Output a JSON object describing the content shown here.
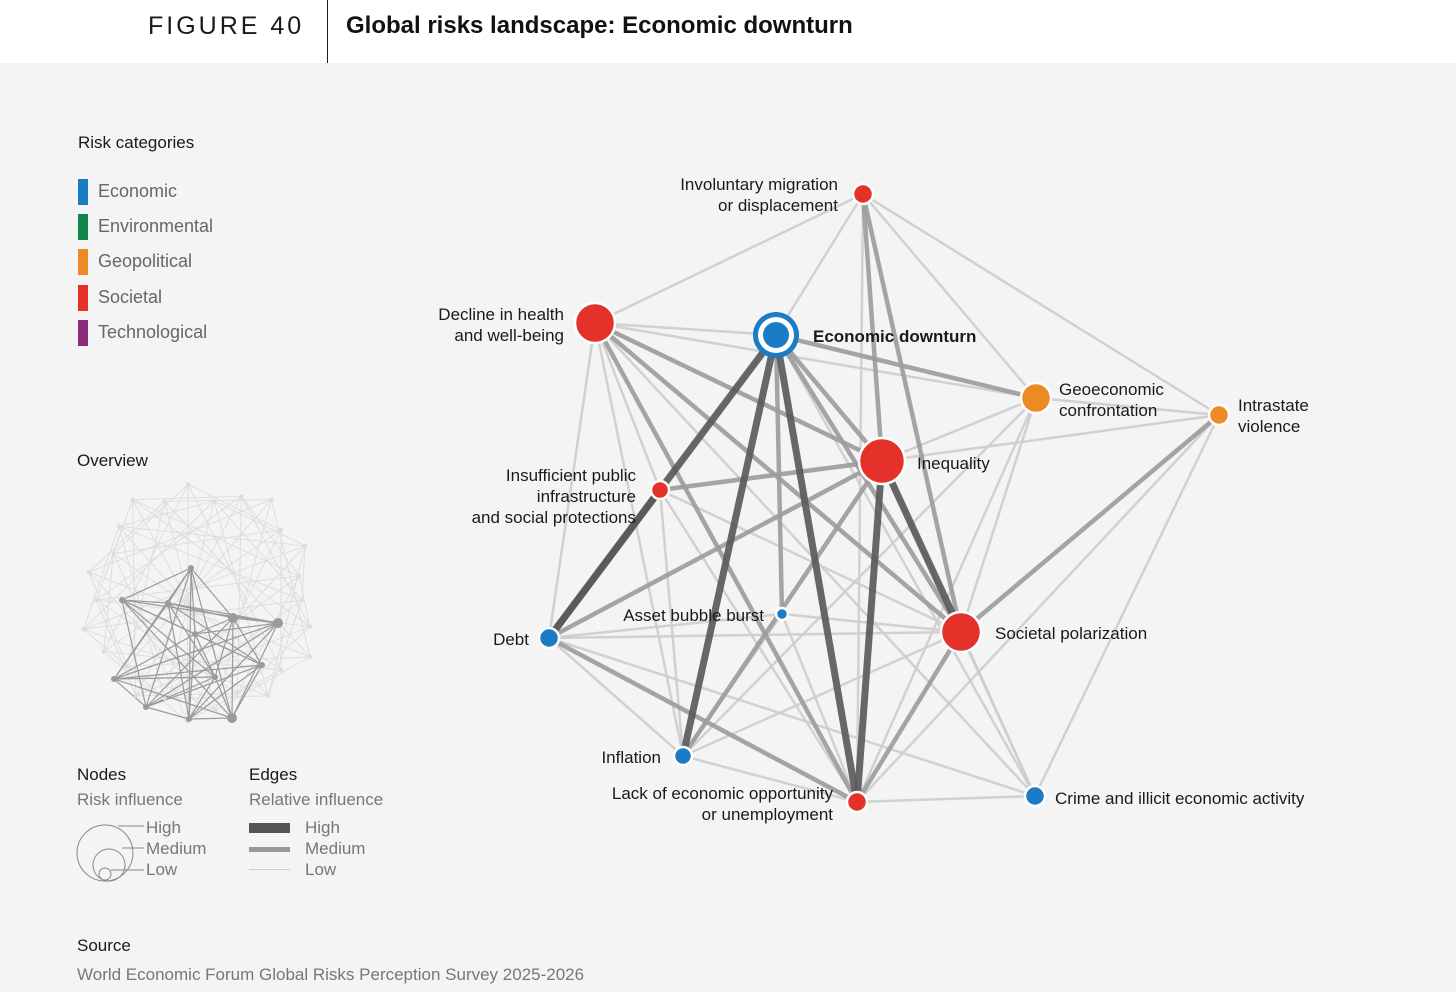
{
  "header": {
    "figure_label": "FIGURE 40",
    "title": "Global risks landscape: Economic downturn"
  },
  "legend": {
    "title": "Risk categories",
    "categories": [
      {
        "label": "Economic",
        "color": "#1b7bc4"
      },
      {
        "label": "Environmental",
        "color": "#12864a"
      },
      {
        "label": "Geopolitical",
        "color": "#ec8a25"
      },
      {
        "label": "Societal",
        "color": "#e4322b"
      },
      {
        "label": "Technological",
        "color": "#8c2a7a"
      }
    ]
  },
  "overview": {
    "title": "Overview"
  },
  "nodes_legend": {
    "title": "Nodes",
    "subtitle": "Risk influence",
    "high": "High",
    "medium": "Medium",
    "low": "Low"
  },
  "edges_legend": {
    "title": "Edges",
    "subtitle": "Relative influence",
    "high": "High",
    "medium": "Medium",
    "low": "Low"
  },
  "source": {
    "title": "Source",
    "text": "World Economic Forum Global Risks Perception Survey 2025-2026"
  },
  "network": {
    "focus_node": "Economic downturn",
    "nodes": [
      {
        "id": "migration",
        "label": [
          "Involuntary migration",
          "or displacement"
        ],
        "category": "Societal",
        "influence": "low"
      },
      {
        "id": "health",
        "label": [
          "Decline in health",
          "and well-being"
        ],
        "category": "Societal",
        "influence": "high"
      },
      {
        "id": "downturn",
        "label": [
          "Economic downturn"
        ],
        "category": "Economic",
        "influence": "high"
      },
      {
        "id": "geoeconomic",
        "label": [
          "Geoeconomic",
          "confrontation"
        ],
        "category": "Geopolitical",
        "influence": "medium"
      },
      {
        "id": "intrastate",
        "label": [
          "Intrastate",
          "violence"
        ],
        "category": "Geopolitical",
        "influence": "low"
      },
      {
        "id": "inequality",
        "label": [
          "Inequality"
        ],
        "category": "Societal",
        "influence": "high"
      },
      {
        "id": "infrastructure",
        "label": [
          "Insufficient public",
          "infrastructure",
          "and social protections"
        ],
        "category": "Societal",
        "influence": "low"
      },
      {
        "id": "bubble",
        "label": [
          "Asset bubble burst"
        ],
        "category": "Economic",
        "influence": "low"
      },
      {
        "id": "debt",
        "label": [
          "Debt"
        ],
        "category": "Economic",
        "influence": "low"
      },
      {
        "id": "polarization",
        "label": [
          "Societal polarization"
        ],
        "category": "Societal",
        "influence": "high"
      },
      {
        "id": "inflation",
        "label": [
          "Inflation"
        ],
        "category": "Economic",
        "influence": "low"
      },
      {
        "id": "unemployment",
        "label": [
          "Lack of economic opportunity",
          "or unemployment"
        ],
        "category": "Societal",
        "influence": "low"
      },
      {
        "id": "crime",
        "label": [
          "Crime and illicit economic activity"
        ],
        "category": "Economic",
        "influence": "low"
      }
    ],
    "edges": [
      [
        "downturn",
        "unemployment",
        "high"
      ],
      [
        "downturn",
        "inflation",
        "high"
      ],
      [
        "downturn",
        "debt",
        "high"
      ],
      [
        "downturn",
        "inequality",
        "medium"
      ],
      [
        "downturn",
        "polarization",
        "medium"
      ],
      [
        "downturn",
        "geoeconomic",
        "medium"
      ],
      [
        "downturn",
        "bubble",
        "medium"
      ],
      [
        "downturn",
        "crime",
        "low"
      ],
      [
        "downturn",
        "migration",
        "low"
      ],
      [
        "downturn",
        "health",
        "low"
      ],
      [
        "downturn",
        "infrastructure",
        "low"
      ],
      [
        "inequality",
        "unemployment",
        "high"
      ],
      [
        "inequality",
        "polarization",
        "high"
      ],
      [
        "inequality",
        "migration",
        "medium"
      ],
      [
        "inequality",
        "infrastructure",
        "medium"
      ],
      [
        "inequality",
        "health",
        "medium"
      ],
      [
        "inequality",
        "debt",
        "medium"
      ],
      [
        "inequality",
        "inflation",
        "medium"
      ],
      [
        "inequality",
        "geoeconomic",
        "low"
      ],
      [
        "inequality",
        "intrastate",
        "low"
      ],
      [
        "inequality",
        "crime",
        "low"
      ],
      [
        "health",
        "polarization",
        "medium"
      ],
      [
        "health",
        "unemployment",
        "medium"
      ],
      [
        "health",
        "migration",
        "low"
      ],
      [
        "health",
        "geoeconomic",
        "low"
      ],
      [
        "health",
        "debt",
        "low"
      ],
      [
        "health",
        "inflation",
        "low"
      ],
      [
        "health",
        "infrastructure",
        "low"
      ],
      [
        "health",
        "crime",
        "low"
      ],
      [
        "migration",
        "polarization",
        "medium"
      ],
      [
        "migration",
        "intrastate",
        "low"
      ],
      [
        "migration",
        "geoeconomic",
        "low"
      ],
      [
        "migration",
        "unemployment",
        "low"
      ],
      [
        "debt",
        "infrastructure",
        "high"
      ],
      [
        "debt",
        "unemployment",
        "medium"
      ],
      [
        "debt",
        "inflation",
        "low"
      ],
      [
        "debt",
        "bubble",
        "low"
      ],
      [
        "debt",
        "polarization",
        "low"
      ],
      [
        "debt",
        "crime",
        "low"
      ],
      [
        "infrastructure",
        "polarization",
        "low"
      ],
      [
        "infrastructure",
        "unemployment",
        "low"
      ],
      [
        "infrastructure",
        "inflation",
        "low"
      ],
      [
        "polarization",
        "intrastate",
        "medium"
      ],
      [
        "polarization",
        "unemployment",
        "medium"
      ],
      [
        "polarization",
        "inflation",
        "low"
      ],
      [
        "polarization",
        "crime",
        "low"
      ],
      [
        "polarization",
        "geoeconomic",
        "low"
      ],
      [
        "intrastate",
        "crime",
        "low"
      ],
      [
        "intrastate",
        "unemployment",
        "low"
      ],
      [
        "intrastate",
        "geoeconomic",
        "low"
      ],
      [
        "geoeconomic",
        "unemployment",
        "low"
      ],
      [
        "geoeconomic",
        "inflation",
        "low"
      ],
      [
        "inflation",
        "unemployment",
        "low"
      ],
      [
        "inflation",
        "bubble",
        "low"
      ],
      [
        "unemployment",
        "crime",
        "low"
      ],
      [
        "bubble",
        "unemployment",
        "low"
      ],
      [
        "bubble",
        "polarization",
        "low"
      ]
    ]
  }
}
